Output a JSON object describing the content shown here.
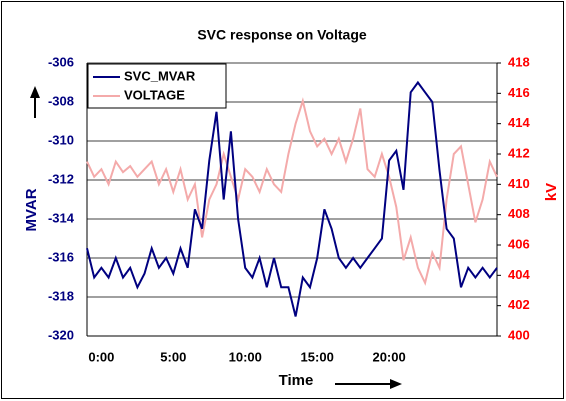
{
  "chart_data": {
    "type": "line",
    "title": "SVC response on Voltage",
    "x_label": "Time",
    "y_label": "MVAR",
    "y2_label": "kV",
    "categories": [
      null,
      null,
      "0:00",
      null,
      null,
      null,
      null,
      null,
      null,
      null,
      null,
      null,
      "5:00",
      null,
      null,
      null,
      null,
      null,
      null,
      null,
      null,
      null,
      "10:00",
      null,
      null,
      null,
      null,
      null,
      null,
      null,
      null,
      null,
      "15:00",
      null,
      null,
      null,
      null,
      null,
      null,
      null,
      null,
      null,
      "20:00",
      null,
      null,
      null,
      null,
      null,
      null,
      null,
      null,
      null,
      null,
      null,
      null,
      null,
      null,
      null
    ],
    "series": [
      {
        "name": "SVC_MVAR",
        "color": "#000080",
        "axis": "y",
        "values": [
          -315.5,
          -317,
          -316.5,
          -317,
          -316,
          -317,
          -316.5,
          -317.5,
          -316.8,
          -315.5,
          -316.5,
          -316,
          -316.8,
          -315.5,
          -316.5,
          -313.5,
          -314.5,
          -311,
          -308.5,
          -313,
          -309.5,
          -314,
          -316.5,
          -317,
          -316,
          -317.5,
          -316,
          -317.5,
          -317.5,
          -319,
          -317,
          -317.5,
          -316,
          -313.5,
          -314.5,
          -316,
          -316.5,
          -316,
          -316.5,
          -316,
          -315.5,
          -315,
          -311,
          -310.5,
          -312.5,
          -307.5,
          -307,
          -307.5,
          -308,
          -311.5,
          -314.5,
          -315,
          -317.5,
          -316.5,
          -317,
          -316.5,
          -317,
          -316.5
        ]
      },
      {
        "name": "VOLTAGE",
        "color": "#f4aaaa",
        "axis": "y2",
        "values": [
          411.5,
          410.5,
          411,
          410,
          411.5,
          410.8,
          411.2,
          410.5,
          411,
          411.5,
          410,
          411,
          409.5,
          411,
          409,
          410,
          406.5,
          409,
          410,
          412,
          410.5,
          409,
          411,
          410.5,
          409.5,
          411,
          410,
          409.5,
          412,
          414,
          415.5,
          413.5,
          412.5,
          413,
          412,
          413,
          411.5,
          413,
          415,
          411,
          410.5,
          412,
          410.5,
          408.5,
          405,
          406.5,
          404.5,
          403.5,
          405.5,
          404.5,
          409,
          412,
          412.5,
          410,
          407.5,
          409,
          411.5,
          410.5
        ]
      }
    ],
    "ylim": [
      -320,
      -306
    ],
    "yticks": [
      -320,
      -318,
      -316,
      -314,
      -312,
      -310,
      -308,
      -306
    ],
    "y2lim": [
      400,
      418
    ],
    "y2ticks": [
      400,
      402,
      404,
      406,
      408,
      410,
      412,
      414,
      416,
      418
    ],
    "grid": true,
    "legend": "top-left"
  }
}
